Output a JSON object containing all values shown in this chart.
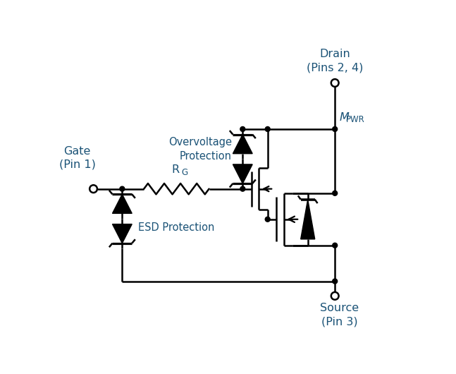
{
  "bg_color": "#ffffff",
  "line_color": "#000000",
  "label_color": "#1a5276",
  "lw": 1.8,
  "figsize": [
    6.47,
    5.3
  ],
  "dpi": 100,
  "labels": {
    "gate": "Gate\n(Pin 1)",
    "drain": "Drain\n(Pins 2, 4)",
    "source": "Source\n(Pin 3)",
    "rg": "R",
    "rg_sub": "G",
    "mpwr_m": "M",
    "mpwr_sub": "PWR",
    "esd": "ESD Protection",
    "overvoltage": "Overvoltage\nProtection"
  }
}
